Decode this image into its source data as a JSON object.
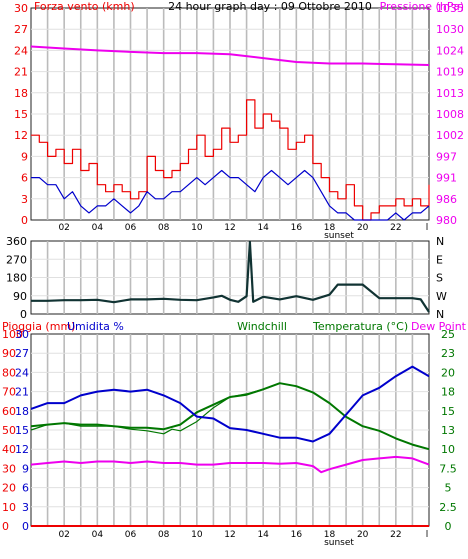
{
  "colors": {
    "wind_avg": "#0000cc",
    "wind_gust": "#ee0000",
    "pressure": "#ee00ee",
    "rain": "#ee0000",
    "humidity": "#0000cc",
    "windchill": "#007700",
    "temperature": "#007700",
    "dewpoint": "#ee00ee",
    "direction": "#113333",
    "grid": "#bbbbbb",
    "frame": "#222222"
  },
  "chart_data": [
    {
      "type": "line",
      "panel": "wind",
      "title": "24 hour graph day : 09 Ottobre 2010",
      "ylabel_left": "Forza vento (kmh)",
      "ylabel_right": "Pressione (hPa)",
      "ylim_left": [
        0,
        30
      ],
      "ylim_right": [
        980,
        1035
      ],
      "left_ticks": [
        "0",
        "3",
        "6",
        "9",
        "12",
        "15",
        "18",
        "21",
        "24",
        "27",
        "30"
      ],
      "right_ticks": [
        "980",
        "986",
        "991",
        "997",
        "1002",
        "1008",
        "1013",
        "1019",
        "1024",
        "1030",
        "1035"
      ],
      "x_ticks": [
        "02",
        "04",
        "06",
        "08",
        "10",
        "12",
        "14",
        "16",
        "18",
        "20",
        "22",
        "l"
      ],
      "x_annotation": "sunset",
      "grid": true,
      "series": [
        {
          "name": "Forza vento (kmh)",
          "role": "gust",
          "x": [
            0,
            0.5,
            1,
            1.5,
            2,
            2.5,
            3,
            3.5,
            4,
            4.5,
            5,
            5.5,
            6,
            6.5,
            7,
            7.5,
            8,
            8.5,
            9,
            9.5,
            10,
            10.5,
            11,
            11.5,
            12,
            12.5,
            13,
            13.5,
            14,
            14.5,
            15,
            15.5,
            16,
            16.5,
            17,
            17.5,
            18,
            18.5,
            19,
            19.5,
            20,
            20.5,
            21,
            21.5,
            22,
            22.5,
            23,
            23.5,
            24
          ],
          "values": [
            12,
            11,
            9,
            10,
            8,
            10,
            7,
            8,
            5,
            4,
            5,
            4,
            3,
            4,
            9,
            7,
            6,
            7,
            8,
            10,
            12,
            9,
            10,
            13,
            11,
            12,
            17,
            13,
            15,
            14,
            13,
            10,
            11,
            12,
            8,
            6,
            4,
            3,
            5,
            2,
            0,
            1,
            2,
            2,
            3,
            2,
            3,
            2,
            5
          ]
        },
        {
          "name": "",
          "role": "average",
          "x": [
            0,
            0.5,
            1,
            1.5,
            2,
            2.5,
            3,
            3.5,
            4,
            4.5,
            5,
            5.5,
            6,
            6.5,
            7,
            7.5,
            8,
            8.5,
            9,
            9.5,
            10,
            10.5,
            11,
            11.5,
            12,
            12.5,
            13,
            13.5,
            14,
            14.5,
            15,
            15.5,
            16,
            16.5,
            17,
            17.5,
            18,
            18.5,
            19,
            19.5,
            20,
            20.5,
            21,
            21.5,
            22,
            22.5,
            23,
            23.5,
            24
          ],
          "values": [
            6,
            6,
            5,
            5,
            3,
            4,
            2,
            1,
            2,
            2,
            3,
            2,
            1,
            2,
            4,
            3,
            3,
            4,
            4,
            5,
            6,
            5,
            6,
            7,
            6,
            6,
            5,
            4,
            6,
            7,
            6,
            5,
            6,
            7,
            6,
            4,
            2,
            1,
            1,
            0,
            0,
            0,
            0,
            0,
            1,
            0,
            1,
            1,
            2
          ]
        },
        {
          "name": "Pressione (hPa)",
          "axis": "right",
          "x": [
            0,
            2,
            4,
            6,
            8,
            10,
            12,
            14,
            16,
            18,
            20,
            22,
            24
          ],
          "values": [
            1025,
            1024.5,
            1024,
            1023.6,
            1023.3,
            1023.3,
            1023,
            1022,
            1021,
            1020.6,
            1020.6,
            1020.4,
            1020.2
          ]
        }
      ]
    },
    {
      "type": "line",
      "panel": "direction",
      "ylim": [
        0,
        360
      ],
      "left_ticks": [
        "0",
        "90",
        "180",
        "270",
        "360"
      ],
      "right_ticks": [
        "N",
        "W",
        "S",
        "E",
        "N"
      ],
      "grid": true,
      "series": [
        {
          "name": "",
          "x": [
            0,
            1,
            2,
            3,
            4,
            5,
            6,
            7,
            8,
            9,
            10,
            11,
            11.5,
            12,
            12.5,
            13,
            13.2,
            13.4,
            14,
            15,
            16,
            17,
            18,
            18.5,
            19,
            20,
            21,
            22,
            23,
            23.5,
            24
          ],
          "values": [
            65,
            65,
            68,
            68,
            70,
            58,
            72,
            72,
            75,
            70,
            68,
            82,
            90,
            70,
            60,
            88,
            355,
            60,
            85,
            72,
            88,
            70,
            95,
            145,
            145,
            145,
            78,
            78,
            78,
            72,
            10
          ]
        }
      ]
    },
    {
      "type": "line",
      "panel": "rain_humidity_temperature",
      "ylabel_left": "Pioggia (mm)",
      "ylabel_left2": "Umidita %",
      "ylabel_center": "Windchill",
      "ylabel_right": "Temperatura (°C)",
      "ylabel_right2": "Dew Point",
      "ylim_rain": [
        0,
        30
      ],
      "ylim_humidity": [
        0,
        100
      ],
      "ylim_temperature": [
        0,
        25
      ],
      "rain_ticks": [
        "0",
        "3",
        "6",
        "9",
        "12",
        "15",
        "18",
        "21",
        "24",
        "27",
        "30"
      ],
      "humidity_ticks": [
        "0",
        "10",
        "20",
        "30",
        "40",
        "50",
        "60",
        "70",
        "80",
        "90",
        "100"
      ],
      "temp_ticks": [
        "0",
        "2.5",
        "5",
        "7.5",
        "10",
        "13",
        "15",
        "18",
        "20",
        "23",
        "25"
      ],
      "x_ticks": [
        "02",
        "04",
        "06",
        "08",
        "10",
        "12",
        "14",
        "16",
        "18",
        "20",
        "22",
        "l"
      ],
      "x_annotation": "sunset",
      "grid": true,
      "series": [
        {
          "name": "Pioggia (mm)",
          "axis": "rain",
          "x": [
            0,
            24
          ],
          "values": [
            0,
            0
          ]
        },
        {
          "name": "Umidita %",
          "axis": "humidity",
          "x": [
            0,
            1,
            2,
            3,
            4,
            5,
            6,
            7,
            8,
            9,
            10,
            11,
            12,
            13,
            14,
            15,
            16,
            17,
            18,
            19,
            20,
            21,
            22,
            23,
            24
          ],
          "values": [
            61,
            64,
            64,
            68,
            70,
            71,
            70,
            71,
            68,
            64,
            57,
            56,
            51,
            50,
            48,
            46,
            46,
            44,
            48,
            58,
            68,
            72,
            78,
            83,
            78
          ]
        },
        {
          "name": "Temperatura (°C)",
          "axis": "temp",
          "x": [
            0,
            1,
            2,
            3,
            4,
            5,
            6,
            7,
            8,
            9,
            10,
            11,
            12,
            13,
            14,
            15,
            16,
            17,
            18,
            19,
            20,
            21,
            22,
            23,
            24
          ],
          "values": [
            13,
            13.2,
            13.4,
            13.2,
            13.2,
            13,
            12.8,
            12.8,
            12.6,
            13.2,
            14.8,
            15.8,
            16.8,
            17.1,
            17.8,
            18.6,
            18.2,
            17.4,
            16,
            14.2,
            13,
            12.4,
            11.4,
            10.6,
            10
          ]
        },
        {
          "name": "Windchill",
          "axis": "temp",
          "x": [
            0,
            1,
            2,
            3,
            4,
            5,
            6,
            7,
            8,
            8.5,
            9,
            10,
            11,
            12,
            13,
            14,
            15,
            16,
            17,
            18,
            19,
            20,
            21,
            22,
            23,
            24
          ],
          "values": [
            12.5,
            13.2,
            13.4,
            13,
            13,
            13,
            12.6,
            12.4,
            12,
            12.6,
            12.4,
            13.6,
            15.4,
            16.8,
            17.2,
            17.8,
            18.6,
            18.2,
            17.4,
            16,
            14.2,
            13,
            12.4,
            11.4,
            10.6,
            10
          ]
        },
        {
          "name": "Dew Point",
          "axis": "temp",
          "x": [
            0,
            1,
            2,
            3,
            4,
            5,
            6,
            7,
            8,
            9,
            10,
            11,
            12,
            13,
            14,
            15,
            16,
            17,
            17.5,
            18,
            19,
            20,
            21,
            22,
            23,
            24
          ],
          "values": [
            8,
            8.2,
            8.4,
            8.2,
            8.4,
            8.4,
            8.2,
            8.4,
            8.2,
            8.2,
            8,
            8,
            8.2,
            8.2,
            8.2,
            8.1,
            8.2,
            7.8,
            7,
            7.4,
            8,
            8.6,
            8.8,
            9,
            8.8,
            8
          ]
        }
      ]
    }
  ]
}
